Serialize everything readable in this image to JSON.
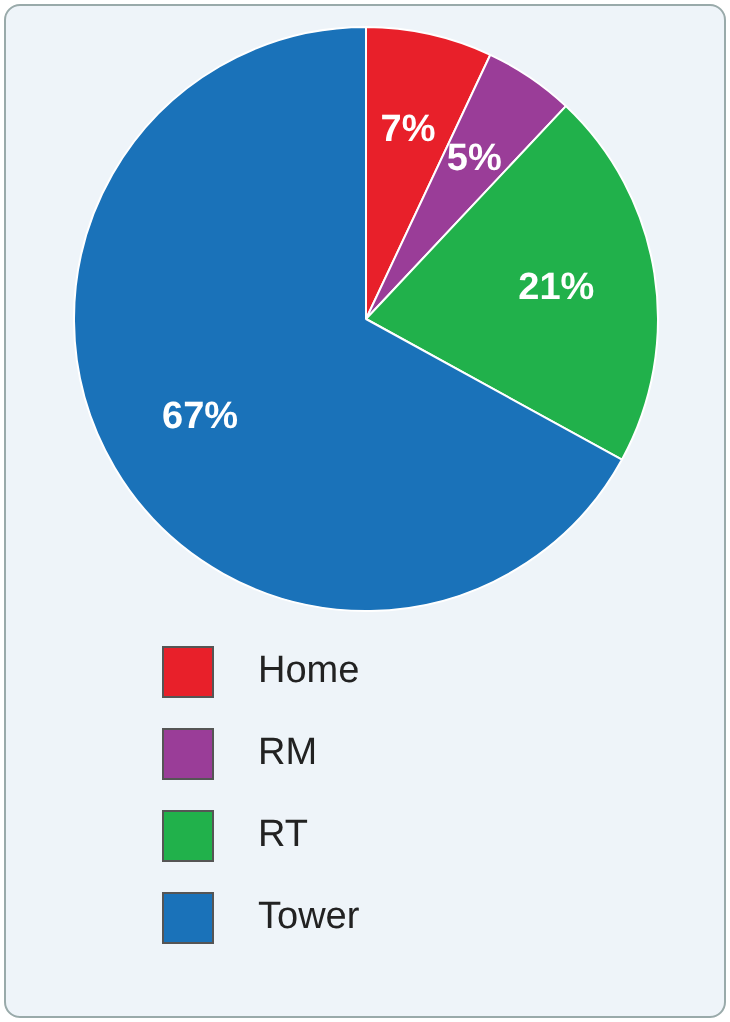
{
  "chart_data": {
    "type": "pie",
    "categories": [
      "Home",
      "RM",
      "RT",
      "Tower"
    ],
    "values": [
      7,
      5,
      21,
      67
    ],
    "colors": [
      "#e8202a",
      "#9a3d98",
      "#21b14b",
      "#1a72b9"
    ],
    "value_labels": [
      "7%",
      "5%",
      "21%",
      "67%"
    ],
    "legend": "bottom"
  }
}
